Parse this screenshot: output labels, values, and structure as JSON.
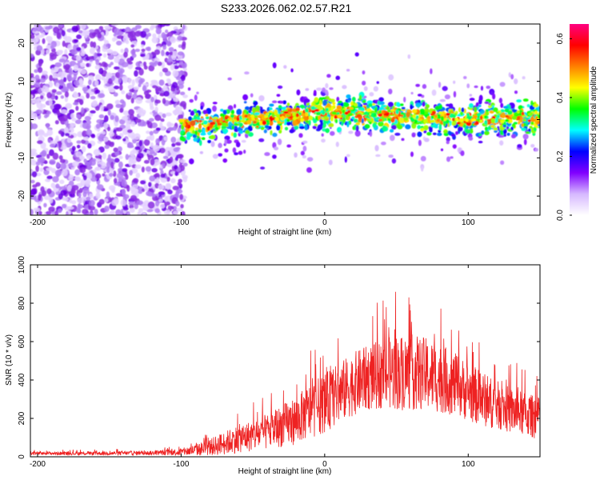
{
  "title": "S233.2026.062.02.57.R21",
  "colors": {
    "snr_line": "#ee2222",
    "frame": "#000000"
  },
  "chart_data": [
    {
      "type": "heatmap",
      "title": "S233.2026.062.02.57.R21",
      "xlabel": "Height of straight line (km)",
      "ylabel": "Frequency (Hz)",
      "xlim": [
        -205,
        150
      ],
      "ylim": [
        -25,
        25
      ],
      "xticks": [
        -200,
        -100,
        0,
        100
      ],
      "yticks": [
        -20,
        -10,
        0,
        10,
        20
      ],
      "xtick_labels": [
        "-200",
        "-100",
        "0",
        "100"
      ],
      "ytick_labels": [
        "-20",
        "-10",
        "0",
        "10",
        "20"
      ],
      "signal_centerline": {
        "x": [
          -100,
          -50,
          0,
          50,
          100,
          150
        ],
        "y": [
          -2,
          0,
          2,
          1,
          0,
          1
        ]
      },
      "colorbar": {
        "label": "Normalized spectral amplitude",
        "range": [
          0,
          0.65
        ],
        "ticks": [
          0.0,
          0.2,
          0.4,
          0.6
        ],
        "tick_labels": [
          "0.0",
          "0.2",
          "0.4",
          "0.6"
        ],
        "colormap": [
          "#ffffff",
          "#d6b8ff",
          "#8000ff",
          "#0000ff",
          "#00ffff",
          "#00ff00",
          "#ffff00",
          "#ff8000",
          "#ff0000",
          "#ff0080"
        ]
      }
    },
    {
      "type": "line",
      "xlabel": "Height of straight line (km)",
      "ylabel": "SNR (10 * v/v)",
      "xlim": [
        -205,
        150
      ],
      "ylim": [
        0,
        1000
      ],
      "xticks": [
        -200,
        -100,
        0,
        100
      ],
      "yticks": [
        0,
        200,
        400,
        600,
        800,
        1000
      ],
      "xtick_labels": [
        "-200",
        "-100",
        "0",
        "100"
      ],
      "ytick_labels": [
        "0",
        "200",
        "400",
        "600",
        "800",
        "1000"
      ],
      "series": [
        {
          "name": "SNR",
          "x": [
            -205,
            -180,
            -160,
            -140,
            -120,
            -100,
            -90,
            -80,
            -70,
            -60,
            -50,
            -40,
            -30,
            -20,
            -10,
            0,
            10,
            20,
            30,
            40,
            50,
            60,
            70,
            80,
            90,
            100,
            110,
            120,
            130,
            140,
            150
          ],
          "base": [
            18,
            18,
            18,
            19,
            20,
            25,
            35,
            50,
            70,
            95,
            110,
            130,
            160,
            190,
            240,
            280,
            330,
            380,
            410,
            430,
            440,
            440,
            430,
            410,
            380,
            340,
            300,
            270,
            240,
            220,
            200
          ],
          "peak": [
            35,
            35,
            35,
            38,
            40,
            60,
            90,
            130,
            180,
            230,
            260,
            300,
            360,
            420,
            500,
            560,
            620,
            680,
            720,
            760,
            800,
            800,
            780,
            740,
            680,
            620,
            560,
            500,
            460,
            430,
            400
          ]
        }
      ]
    }
  ]
}
